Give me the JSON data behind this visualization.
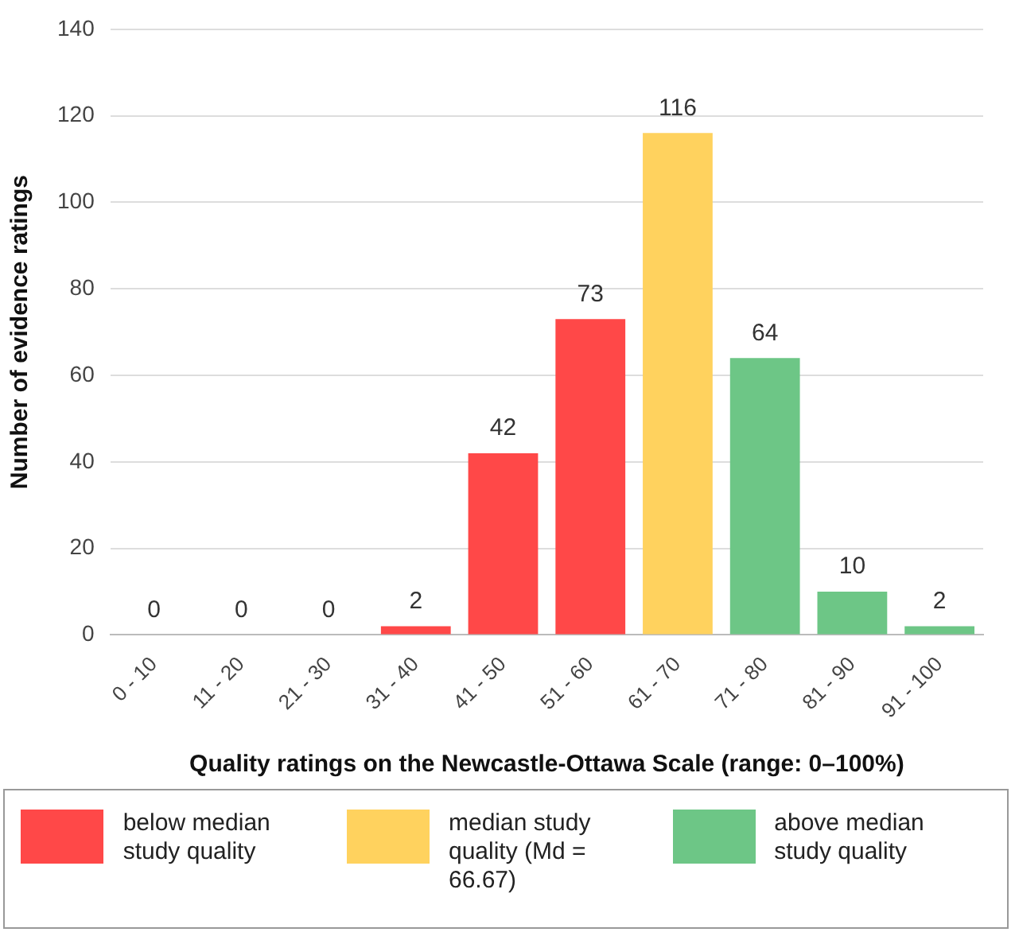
{
  "chart_data": {
    "type": "bar",
    "xlabel": "Quality ratings on the Newcastle-Ottawa Scale (range: 0–100%)",
    "ylabel": "Number of evidence ratings",
    "categories": [
      "0 - 10",
      "11 - 20",
      "21 - 30",
      "31 - 40",
      "41 - 50",
      "51 - 60",
      "61 - 70",
      "71 - 80",
      "81 - 90",
      "91 - 100"
    ],
    "series": [
      {
        "name": "below median study quality",
        "color": "#ff4848",
        "values": [
          0,
          0,
          0,
          2,
          42,
          73,
          null,
          null,
          null,
          null
        ]
      },
      {
        "name": "median study quality (Md = 66.67)",
        "color": "#ffd25e",
        "values": [
          null,
          null,
          null,
          null,
          null,
          null,
          116,
          null,
          null,
          null
        ]
      },
      {
        "name": "above median study quality",
        "color": "#6dc686",
        "values": [
          null,
          null,
          null,
          null,
          null,
          null,
          null,
          64,
          10,
          2
        ]
      }
    ],
    "stacked": true,
    "ylim": [
      0,
      140
    ],
    "yticks": [
      0,
      20,
      40,
      60,
      80,
      100,
      120,
      140
    ],
    "grid": "y",
    "legend": "bottom",
    "data_labels": true
  }
}
